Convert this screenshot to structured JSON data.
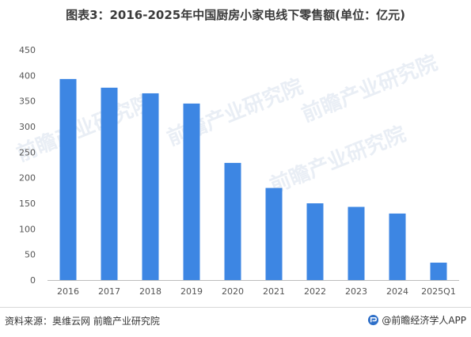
{
  "title": "图表3：2016-2025年中国厨房小家电线下零售额(单位：亿元)",
  "source": "资料来源：奥维云网 前瞻产业研究院",
  "brand": "@前瞻经济学人APP",
  "watermark": "前瞻产业研究院",
  "colors": {
    "bar": "#3d86e3",
    "axis": "#bdbdbd",
    "grid": "#e6e6e6",
    "tick": "#555555"
  },
  "chart_data": {
    "type": "bar",
    "categories": [
      "2016",
      "2017",
      "2018",
      "2019",
      "2020",
      "2021",
      "2022",
      "2023",
      "2024",
      "2025Q1"
    ],
    "values": [
      393,
      376,
      365,
      345,
      229,
      180,
      150,
      143,
      130,
      34
    ],
    "ylim": [
      0,
      450
    ],
    "yticks": [
      0,
      50,
      100,
      150,
      200,
      250,
      300,
      350,
      400,
      450
    ],
    "grid": false,
    "legend": "none"
  }
}
